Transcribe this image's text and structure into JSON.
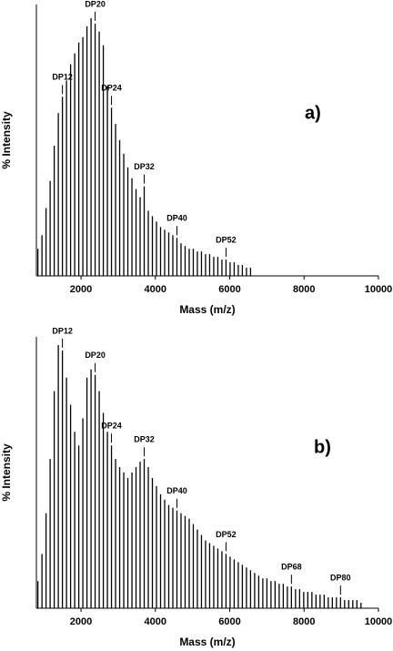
{
  "chart_data": [
    {
      "type": "stick",
      "panel_label": "a)",
      "xlabel": "Mass (m/z)",
      "ylabel": "% Intensity",
      "xlim": [
        800,
        10000
      ],
      "ylim": [
        0,
        100
      ],
      "xticks": [
        2000,
        4000,
        6000,
        8000,
        10000
      ],
      "color": "#000000",
      "x": [
        840,
        950,
        1060,
        1170,
        1280,
        1390,
        1500,
        1610,
        1720,
        1830,
        1940,
        2050,
        2160,
        2270,
        2380,
        2490,
        2600,
        2710,
        2820,
        2930,
        3040,
        3150,
        3260,
        3370,
        3480,
        3590,
        3700,
        3810,
        3920,
        4030,
        4140,
        4250,
        4360,
        4470,
        4580,
        4690,
        4800,
        4910,
        5020,
        5130,
        5240,
        5350,
        5460,
        5570,
        5680,
        5790,
        5900,
        6010,
        6120,
        6230,
        6340,
        6450,
        6560
      ],
      "values": [
        10,
        15,
        25,
        35,
        48,
        60,
        66,
        72,
        78,
        82,
        86,
        88,
        92,
        95,
        93,
        90,
        85,
        70,
        62,
        56,
        50,
        45,
        40,
        36,
        32,
        29,
        33,
        24,
        22,
        20,
        18,
        17,
        16,
        15,
        14,
        12,
        11,
        10,
        10,
        9,
        9,
        8,
        8,
        7,
        7,
        6,
        6,
        5,
        5,
        4,
        4,
        3,
        3
      ],
      "annotations": [
        {
          "text": "DP12",
          "x": 1500
        },
        {
          "text": "DP20",
          "x": 2380
        },
        {
          "text": "DP24",
          "x": 2820
        },
        {
          "text": "DP32",
          "x": 3700
        },
        {
          "text": "DP40",
          "x": 4580
        },
        {
          "text": "DP52",
          "x": 5900
        }
      ]
    },
    {
      "type": "stick",
      "panel_label": "b)",
      "xlabel": "Mass (m/z)",
      "ylabel": "% Intensity",
      "xlim": [
        800,
        10000
      ],
      "ylim": [
        0,
        100
      ],
      "xticks": [
        2000,
        4000,
        6000,
        8000,
        10000
      ],
      "color": "#000000",
      "x": [
        840,
        950,
        1060,
        1170,
        1280,
        1390,
        1500,
        1610,
        1720,
        1830,
        1940,
        2050,
        2160,
        2270,
        2380,
        2490,
        2600,
        2710,
        2820,
        2930,
        3040,
        3150,
        3260,
        3370,
        3480,
        3590,
        3700,
        3810,
        3920,
        4030,
        4140,
        4250,
        4360,
        4470,
        4580,
        4690,
        4800,
        4910,
        5020,
        5130,
        5240,
        5350,
        5460,
        5570,
        5680,
        5790,
        5900,
        6010,
        6120,
        6230,
        6340,
        6450,
        6560,
        6670,
        6780,
        6890,
        7000,
        7110,
        7220,
        7330,
        7440,
        7550,
        7660,
        7770,
        7880,
        7990,
        8100,
        8210,
        8320,
        8430,
        8540,
        8650,
        8760,
        8870,
        8980,
        9090,
        9200,
        9310,
        9420,
        9530
      ],
      "values": [
        10,
        20,
        35,
        55,
        80,
        97,
        95,
        85,
        75,
        65,
        60,
        70,
        85,
        88,
        86,
        80,
        72,
        65,
        60,
        55,
        52,
        50,
        48,
        50,
        52,
        54,
        55,
        52,
        48,
        45,
        42,
        40,
        38,
        37,
        36,
        35,
        34,
        33,
        31,
        29,
        27,
        25,
        24,
        23,
        22,
        21,
        20,
        19,
        18,
        17,
        16,
        15,
        14,
        13,
        12,
        11,
        11,
        10,
        10,
        9,
        9,
        8,
        8,
        7,
        7,
        6,
        6,
        6,
        5,
        5,
        5,
        4,
        4,
        4,
        4,
        3,
        3,
        3,
        3,
        2
      ],
      "annotations": [
        {
          "text": "DP12",
          "x": 1500
        },
        {
          "text": "DP20",
          "x": 2380
        },
        {
          "text": "DP24",
          "x": 2820
        },
        {
          "text": "DP32",
          "x": 3700
        },
        {
          "text": "DP40",
          "x": 4580
        },
        {
          "text": "DP52",
          "x": 5900
        },
        {
          "text": "DP68",
          "x": 7660
        },
        {
          "text": "DP80",
          "x": 8980
        }
      ]
    }
  ]
}
